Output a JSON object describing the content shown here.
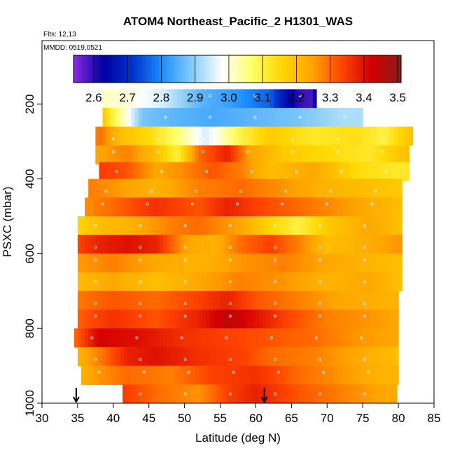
{
  "chart_data": {
    "type": "heatmap",
    "title": "ATOM4 Northeast_Pacific_2 H1301_WAS",
    "subtitle_flights": "Flts: 12,13",
    "subtitle_dates": "MMDD: 0519,0521",
    "xlabel": "Latitude (deg N)",
    "ylabel": "PSXC (mbar)",
    "xlim": [
      30,
      85
    ],
    "ylim": [
      1000,
      0
    ],
    "x_ticks": [
      30,
      35,
      40,
      45,
      50,
      55,
      60,
      65,
      70,
      75,
      80,
      85
    ],
    "y_ticks": [
      200,
      400,
      600,
      800,
      1000
    ],
    "colorbar": {
      "min": 2.54,
      "max": 3.51,
      "ticks": [
        2.6,
        2.7,
        2.8,
        2.9,
        3.0,
        3.1,
        3.2,
        3.3,
        3.4,
        3.5
      ],
      "tick_labels": [
        "2.6",
        "2.7",
        "2.8",
        "2.9",
        "3.0",
        "3.1",
        "3.2",
        "3.3",
        "3.4",
        "3.5"
      ],
      "colors": [
        "#8a2be2",
        "#0000a0",
        "#0033cc",
        "#1e90ff",
        "#87cefa",
        "#ffffff",
        "#ffff66",
        "#ffd700",
        "#ffa500",
        "#ff4500",
        "#d40000",
        "#8b1a1a"
      ]
    },
    "bands": [
      {
        "p": 185,
        "lat_range": [
          41.3,
          81.8
        ],
        "values": [
          [
            35.0,
            3.14
          ],
          [
            36.5,
            3.08
          ],
          [
            38.0,
            3.02
          ],
          [
            42.0,
            3.0
          ],
          [
            47.0,
            2.95
          ],
          [
            52.0,
            2.86
          ],
          [
            57.0,
            2.82
          ],
          [
            62.0,
            2.76
          ],
          [
            64.0,
            2.66
          ],
          [
            66.0,
            2.6
          ],
          [
            68.0,
            2.58
          ],
          [
            70.0,
            3.0
          ]
        ]
      },
      {
        "p": 235,
        "lat_range": [
          41.3,
          81.8
        ],
        "values": [
          [
            35.0,
            3.2
          ],
          [
            37.0,
            3.35
          ],
          [
            39.0,
            3.15
          ],
          [
            42.0,
            2.99
          ],
          [
            44.0,
            2.88
          ],
          [
            48.0,
            2.86
          ],
          [
            54.0,
            2.84
          ],
          [
            60.0,
            2.86
          ],
          [
            66.0,
            2.88
          ],
          [
            72.0,
            2.92
          ],
          [
            75.0,
            2.92
          ]
        ]
      },
      {
        "p": 285,
        "lat_range": [
          41.3,
          81.8
        ],
        "values": [
          [
            35.0,
            3.1
          ],
          [
            38.0,
            3.3
          ],
          [
            41.0,
            3.2
          ],
          [
            45.0,
            3.15
          ],
          [
            49.0,
            3.06
          ],
          [
            53.0,
            2.95
          ],
          [
            58.0,
            3.1
          ],
          [
            62.0,
            3.18
          ],
          [
            68.0,
            3.12
          ],
          [
            74.0,
            3.14
          ],
          [
            78.0,
            3.1
          ],
          [
            82.0,
            3.2
          ]
        ]
      },
      {
        "p": 335,
        "lat_range": [
          41.3,
          81.8
        ],
        "values": [
          [
            34.0,
            3.28
          ],
          [
            38.0,
            3.24
          ],
          [
            42.0,
            3.28
          ],
          [
            46.0,
            3.2
          ],
          [
            49.0,
            3.1
          ],
          [
            52.0,
            3.3
          ],
          [
            56.0,
            3.38
          ],
          [
            59.0,
            3.25
          ],
          [
            64.0,
            3.18
          ],
          [
            70.0,
            3.15
          ],
          [
            76.0,
            3.12
          ],
          [
            81.0,
            3.2
          ]
        ]
      },
      {
        "p": 380,
        "lat_range": [
          41.3,
          81.8
        ],
        "values": [
          [
            34.0,
            3.3
          ],
          [
            38.0,
            3.35
          ],
          [
            42.0,
            3.32
          ],
          [
            46.0,
            3.24
          ],
          [
            50.0,
            3.27
          ],
          [
            54.0,
            3.32
          ],
          [
            58.0,
            3.28
          ],
          [
            62.0,
            3.2
          ],
          [
            68.0,
            3.24
          ],
          [
            74.0,
            3.15
          ],
          [
            80.0,
            3.12
          ]
        ]
      },
      {
        "p": 425,
        "lat_range": [
          41.3,
          81.8
        ],
        "values": [
          [
            34.0,
            3.3
          ],
          [
            40.0,
            3.26
          ],
          [
            46.0,
            3.22
          ],
          [
            52.0,
            3.28
          ],
          [
            58.0,
            3.3
          ],
          [
            64.0,
            3.26
          ],
          [
            70.0,
            3.22
          ],
          [
            76.0,
            3.2
          ],
          [
            80.0,
            3.18
          ]
        ]
      },
      {
        "p": 475,
        "lat_range": [
          41.3,
          81.8
        ],
        "values": [
          [
            34.0,
            3.25
          ],
          [
            40.0,
            3.3
          ],
          [
            46.0,
            3.36
          ],
          [
            52.0,
            3.32
          ],
          [
            56.0,
            3.38
          ],
          [
            60.0,
            3.34
          ],
          [
            66.0,
            3.3
          ],
          [
            72.0,
            3.26
          ],
          [
            78.0,
            3.22
          ],
          [
            80.0,
            3.2
          ]
        ]
      },
      {
        "p": 525,
        "lat_range": [
          41.3,
          81.8
        ],
        "values": [
          [
            34.0,
            3.15
          ],
          [
            38.0,
            3.2
          ],
          [
            42.0,
            3.22
          ],
          [
            48.0,
            3.28
          ],
          [
            52.0,
            3.3
          ],
          [
            58.0,
            3.24
          ],
          [
            62.0,
            3.16
          ],
          [
            66.0,
            3.1
          ],
          [
            70.0,
            3.18
          ],
          [
            76.0,
            3.24
          ],
          [
            80.0,
            3.2
          ]
        ]
      },
      {
        "p": 575,
        "lat_range": [
          41.3,
          81.8
        ],
        "values": [
          [
            34.0,
            3.32
          ],
          [
            38.0,
            3.38
          ],
          [
            42.0,
            3.4
          ],
          [
            46.0,
            3.38
          ],
          [
            50.0,
            3.25
          ],
          [
            54.0,
            3.22
          ],
          [
            58.0,
            3.3
          ],
          [
            62.0,
            3.34
          ],
          [
            66.0,
            3.28
          ],
          [
            70.0,
            3.2
          ],
          [
            74.0,
            3.22
          ],
          [
            80.0,
            3.26
          ]
        ]
      },
      {
        "p": 625,
        "lat_range": [
          41.3,
          81.8
        ],
        "values": [
          [
            34.0,
            3.25
          ],
          [
            40.0,
            3.28
          ],
          [
            46.0,
            3.24
          ],
          [
            52.0,
            3.22
          ],
          [
            58.0,
            3.26
          ],
          [
            64.0,
            3.28
          ],
          [
            70.0,
            3.24
          ],
          [
            76.0,
            3.22
          ],
          [
            80.0,
            3.2
          ]
        ]
      },
      {
        "p": 675,
        "lat_range": [
          41.3,
          81.8
        ],
        "values": [
          [
            34.0,
            3.2
          ],
          [
            40.0,
            3.24
          ],
          [
            46.0,
            3.2
          ],
          [
            52.0,
            3.24
          ],
          [
            58.0,
            3.28
          ],
          [
            64.0,
            3.26
          ],
          [
            70.0,
            3.22
          ],
          [
            76.0,
            3.24
          ],
          [
            80.0,
            3.2
          ]
        ]
      },
      {
        "p": 725,
        "lat_range": [
          41.3,
          81.8
        ],
        "values": [
          [
            34.0,
            3.28
          ],
          [
            40.0,
            3.32
          ],
          [
            46.0,
            3.3
          ],
          [
            52.0,
            3.34
          ],
          [
            56.0,
            3.38
          ],
          [
            60.0,
            3.32
          ],
          [
            66.0,
            3.28
          ],
          [
            72.0,
            3.24
          ],
          [
            80.0,
            3.22
          ]
        ]
      },
      {
        "p": 775,
        "lat_range": [
          41.3,
          81.8
        ],
        "values": [
          [
            34.0,
            3.3
          ],
          [
            40.0,
            3.36
          ],
          [
            46.0,
            3.32
          ],
          [
            52.0,
            3.38
          ],
          [
            56.0,
            3.45
          ],
          [
            60.0,
            3.4
          ],
          [
            64.0,
            3.34
          ],
          [
            70.0,
            3.28
          ],
          [
            76.0,
            3.26
          ],
          [
            80.0,
            3.24
          ]
        ]
      },
      {
        "p": 825,
        "lat_range": [
          41.3,
          81.8
        ],
        "values": [
          [
            34.0,
            3.28
          ],
          [
            38.0,
            3.42
          ],
          [
            44.0,
            3.4
          ],
          [
            50.0,
            3.36
          ],
          [
            56.0,
            3.34
          ],
          [
            62.0,
            3.32
          ],
          [
            68.0,
            3.3
          ],
          [
            74.0,
            3.26
          ],
          [
            80.0,
            3.24
          ]
        ]
      },
      {
        "p": 875,
        "lat_range": [
          41.3,
          81.8
        ],
        "values": [
          [
            34.0,
            3.2
          ],
          [
            38.0,
            3.28
          ],
          [
            42.0,
            3.38
          ],
          [
            46.0,
            3.4
          ],
          [
            52.0,
            3.36
          ],
          [
            58.0,
            3.34
          ],
          [
            62.0,
            3.3
          ],
          [
            68.0,
            3.28
          ],
          [
            74.0,
            3.24
          ],
          [
            80.0,
            3.2
          ]
        ]
      },
      {
        "p": 925,
        "lat_range": [
          41.3,
          81.8
        ],
        "values": [
          [
            34.0,
            3.2
          ],
          [
            38.0,
            3.26
          ],
          [
            42.0,
            3.3
          ],
          [
            48.0,
            3.28
          ],
          [
            54.0,
            3.34
          ],
          [
            60.0,
            3.36
          ],
          [
            66.0,
            3.3
          ],
          [
            72.0,
            3.26
          ],
          [
            78.0,
            3.22
          ]
        ]
      },
      {
        "p": 975,
        "lat_range": [
          41.3,
          81.8
        ],
        "values": [
          [
            34.0,
            3.3
          ],
          [
            40.0,
            3.36
          ],
          [
            46.0,
            3.3
          ],
          [
            52.0,
            3.26
          ],
          [
            56.0,
            3.34
          ],
          [
            60.0,
            3.38
          ],
          [
            66.0,
            3.32
          ],
          [
            72.0,
            3.28
          ],
          [
            78.0,
            3.24
          ]
        ]
      }
    ],
    "markers": [
      {
        "lat": 34.8,
        "p": 1000
      },
      {
        "lat": 61.2,
        "p": 1000
      }
    ]
  }
}
